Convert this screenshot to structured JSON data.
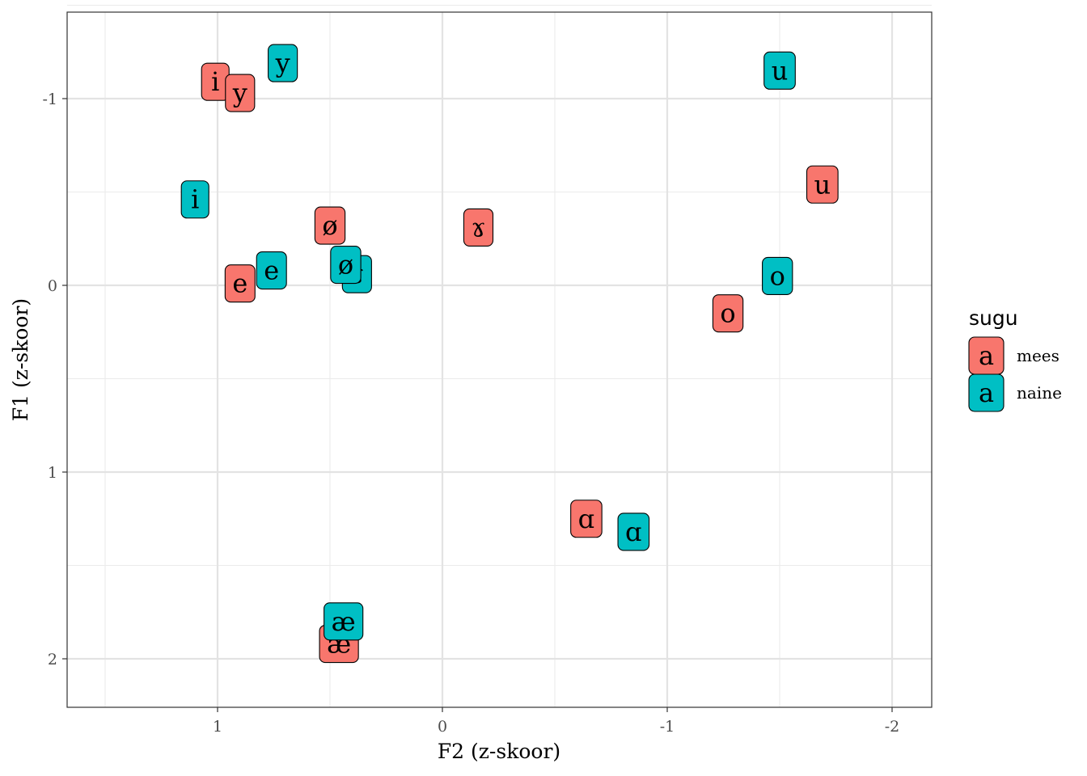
{
  "chart_data": {
    "type": "scatter",
    "xlabel": "F2 (z-skoor)",
    "ylabel": "F1 (z-skoor)",
    "xlim": [
      1.5,
      -2.15
    ],
    "ylim": [
      -1.5,
      2.27
    ],
    "x_reversed": true,
    "y_reversed": true,
    "grid": true,
    "x_ticks": [
      1,
      0,
      -1,
      -2
    ],
    "x_tick_labels": [
      "1",
      "0",
      "-1",
      "-2"
    ],
    "y_ticks": [
      -1,
      0,
      1,
      2
    ],
    "y_tick_labels": [
      "-1",
      "0",
      "1",
      "2"
    ],
    "legend": {
      "title": "sugu",
      "placement": "right",
      "key_symbol": "a",
      "entries": [
        {
          "label": "mees",
          "color": "#F8766D"
        },
        {
          "label": "naine",
          "color": "#00BFC4"
        }
      ]
    },
    "series": [
      {
        "name": "mees",
        "color": "#F8766D",
        "points": [
          {
            "label": "i",
            "x": 1.01,
            "y": -1.09
          },
          {
            "label": "y",
            "x": 0.9,
            "y": -1.03
          },
          {
            "label": "ø",
            "x": 0.5,
            "y": -0.32
          },
          {
            "label": "ɤ",
            "x": -0.16,
            "y": -0.31
          },
          {
            "label": "u",
            "x": -1.69,
            "y": -0.54
          },
          {
            "label": "e",
            "x": 0.9,
            "y": -0.01
          },
          {
            "label": "o",
            "x": -1.27,
            "y": 0.15
          },
          {
            "label": "ɑ",
            "x": -0.64,
            "y": 1.25
          },
          {
            "label": "æ",
            "x": 0.46,
            "y": 1.92
          }
        ]
      },
      {
        "name": "naine",
        "color": "#00BFC4",
        "points": [
          {
            "label": "y",
            "x": 0.71,
            "y": -1.19
          },
          {
            "label": "u",
            "x": -1.5,
            "y": -1.15
          },
          {
            "label": "i",
            "x": 1.1,
            "y": -0.46
          },
          {
            "label": "ɤ",
            "x": 0.38,
            "y": -0.06
          },
          {
            "label": "ø",
            "x": 0.43,
            "y": -0.11
          },
          {
            "label": "e",
            "x": 0.76,
            "y": -0.08
          },
          {
            "label": "o",
            "x": -1.49,
            "y": -0.05
          },
          {
            "label": "ɑ",
            "x": -0.85,
            "y": 1.32
          },
          {
            "label": "æ",
            "x": 0.44,
            "y": 1.8
          }
        ]
      }
    ]
  }
}
